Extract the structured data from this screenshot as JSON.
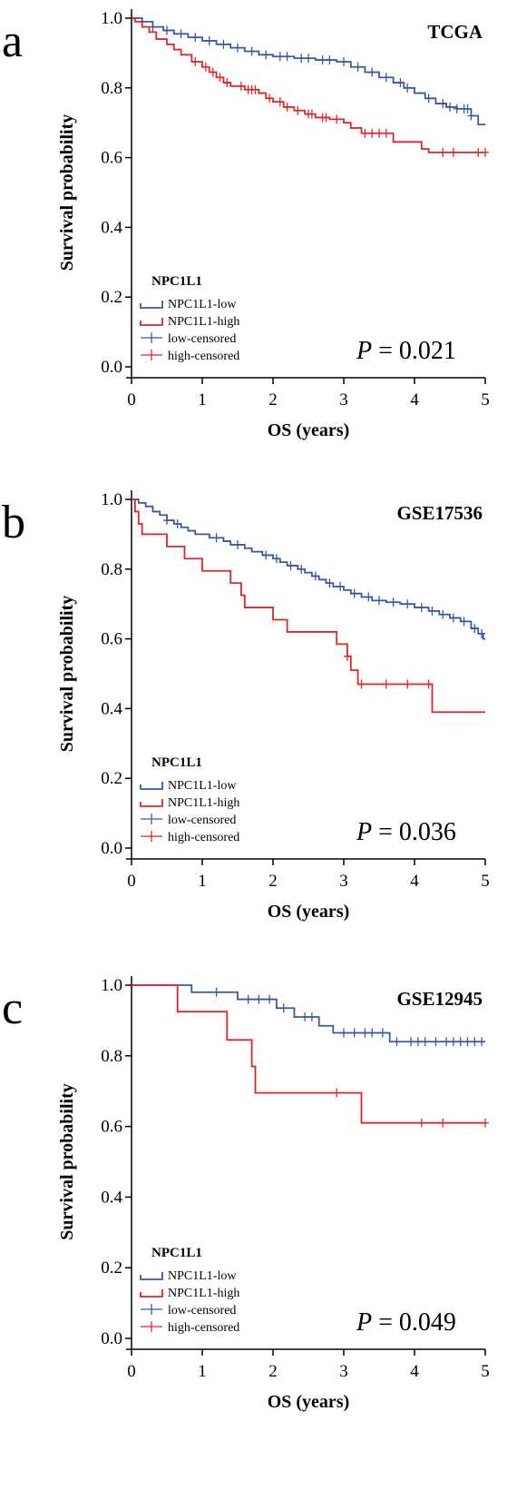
{
  "colors": {
    "low": "#3a57a7",
    "high": "#e0262a",
    "axis": "#000000"
  },
  "chart_data": [
    {
      "type": "line",
      "panel_label": "a",
      "title": "TCGA",
      "xlabel": "OS (years)",
      "ylabel": "Survival probability",
      "xlim": [
        0,
        5
      ],
      "ylim": [
        0,
        1
      ],
      "xticks": [
        "0",
        "1",
        "2",
        "3",
        "4",
        "5"
      ],
      "yticks": [
        "0.0",
        "0.2",
        "0.4",
        "0.6",
        "0.8",
        "1.0"
      ],
      "legend": {
        "title": "NPC1L1",
        "placement": "bottom-left",
        "entries": [
          "NPC1L1-low",
          "NPC1L1-high",
          "low-censored",
          "high-censored"
        ]
      },
      "p_value": {
        "label": "P",
        "value": "= 0.021"
      },
      "series": [
        {
          "name": "NPC1L1-low",
          "color_key": "low",
          "steps": [
            [
              0,
              1.0
            ],
            [
              0.15,
              0.99
            ],
            [
              0.3,
              0.975
            ],
            [
              0.45,
              0.965
            ],
            [
              0.6,
              0.955
            ],
            [
              0.8,
              0.945
            ],
            [
              1.0,
              0.935
            ],
            [
              1.2,
              0.925
            ],
            [
              1.4,
              0.915
            ],
            [
              1.6,
              0.905
            ],
            [
              1.8,
              0.895
            ],
            [
              2.0,
              0.89
            ],
            [
              2.3,
              0.885
            ],
            [
              2.6,
              0.88
            ],
            [
              2.9,
              0.875
            ],
            [
              3.1,
              0.86
            ],
            [
              3.3,
              0.845
            ],
            [
              3.5,
              0.83
            ],
            [
              3.7,
              0.815
            ],
            [
              3.85,
              0.8
            ],
            [
              4.0,
              0.785
            ],
            [
              4.15,
              0.77
            ],
            [
              4.3,
              0.755
            ],
            [
              4.45,
              0.745
            ],
            [
              4.6,
              0.74
            ],
            [
              4.8,
              0.72
            ],
            [
              4.9,
              0.695
            ]
          ],
          "end": 5.0,
          "censored": [
            0.3,
            0.5,
            0.7,
            0.9,
            1.1,
            1.3,
            1.5,
            1.7,
            1.9,
            2.1,
            2.2,
            2.4,
            2.5,
            2.7,
            2.8,
            3.0,
            3.2,
            3.4,
            3.6,
            3.8,
            3.9,
            4.2,
            4.4,
            4.5,
            4.6,
            4.7,
            4.75,
            4.8
          ]
        },
        {
          "name": "NPC1L1-high",
          "color_key": "high",
          "steps": [
            [
              0,
              1.0
            ],
            [
              0.05,
              0.99
            ],
            [
              0.15,
              0.975
            ],
            [
              0.25,
              0.96
            ],
            [
              0.35,
              0.94
            ],
            [
              0.5,
              0.925
            ],
            [
              0.6,
              0.91
            ],
            [
              0.7,
              0.895
            ],
            [
              0.85,
              0.875
            ],
            [
              1.0,
              0.86
            ],
            [
              1.1,
              0.845
            ],
            [
              1.2,
              0.83
            ],
            [
              1.3,
              0.815
            ],
            [
              1.4,
              0.805
            ],
            [
              1.6,
              0.795
            ],
            [
              1.8,
              0.785
            ],
            [
              1.9,
              0.77
            ],
            [
              2.0,
              0.76
            ],
            [
              2.15,
              0.745
            ],
            [
              2.3,
              0.735
            ],
            [
              2.45,
              0.725
            ],
            [
              2.6,
              0.715
            ],
            [
              2.8,
              0.71
            ],
            [
              3.0,
              0.7
            ],
            [
              3.1,
              0.685
            ],
            [
              3.25,
              0.67
            ],
            [
              3.7,
              0.645
            ],
            [
              4.1,
              0.625
            ],
            [
              4.2,
              0.615
            ]
          ],
          "end": 5.0,
          "censored": [
            0.9,
            1.05,
            1.15,
            1.25,
            1.35,
            1.55,
            1.65,
            1.7,
            1.75,
            1.95,
            2.1,
            2.2,
            2.35,
            2.5,
            2.55,
            2.7,
            2.75,
            2.9,
            3.3,
            3.4,
            3.5,
            3.6,
            4.4,
            4.55,
            4.9,
            5.0
          ]
        }
      ]
    },
    {
      "type": "line",
      "panel_label": "b",
      "title": "GSE17536",
      "xlabel": "OS (years)",
      "ylabel": "Survival probability",
      "xlim": [
        0,
        5
      ],
      "ylim": [
        0,
        1
      ],
      "xticks": [
        "0",
        "1",
        "2",
        "3",
        "4",
        "5"
      ],
      "yticks": [
        "0.0",
        "0.2",
        "0.4",
        "0.6",
        "0.8",
        "1.0"
      ],
      "legend": {
        "title": "NPC1L1",
        "placement": "bottom-left",
        "entries": [
          "NPC1L1-low",
          "NPC1L1-high",
          "low-censored",
          "high-censored"
        ]
      },
      "p_value": {
        "label": "P",
        "value": "= 0.036"
      },
      "series": [
        {
          "name": "NPC1L1-low",
          "color_key": "low",
          "steps": [
            [
              0,
              1.0
            ],
            [
              0.1,
              0.99
            ],
            [
              0.2,
              0.98
            ],
            [
              0.3,
              0.965
            ],
            [
              0.4,
              0.955
            ],
            [
              0.5,
              0.94
            ],
            [
              0.6,
              0.93
            ],
            [
              0.7,
              0.92
            ],
            [
              0.8,
              0.91
            ],
            [
              0.9,
              0.9
            ],
            [
              1.1,
              0.89
            ],
            [
              1.3,
              0.88
            ],
            [
              1.4,
              0.87
            ],
            [
              1.6,
              0.86
            ],
            [
              1.7,
              0.85
            ],
            [
              1.85,
              0.84
            ],
            [
              2.0,
              0.83
            ],
            [
              2.1,
              0.82
            ],
            [
              2.2,
              0.81
            ],
            [
              2.35,
              0.8
            ],
            [
              2.45,
              0.79
            ],
            [
              2.55,
              0.78
            ],
            [
              2.65,
              0.77
            ],
            [
              2.75,
              0.76
            ],
            [
              2.85,
              0.75
            ],
            [
              3.0,
              0.74
            ],
            [
              3.1,
              0.73
            ],
            [
              3.25,
              0.72
            ],
            [
              3.4,
              0.71
            ],
            [
              3.6,
              0.705
            ],
            [
              3.8,
              0.7
            ],
            [
              4.0,
              0.69
            ],
            [
              4.2,
              0.68
            ],
            [
              4.35,
              0.67
            ],
            [
              4.5,
              0.66
            ],
            [
              4.65,
              0.65
            ],
            [
              4.8,
              0.63
            ],
            [
              4.9,
              0.615
            ],
            [
              4.97,
              0.6
            ]
          ],
          "end": 5.0,
          "censored": [
            0.5,
            0.65,
            1.2,
            1.5,
            1.9,
            2.05,
            2.25,
            2.4,
            2.6,
            2.8,
            2.95,
            3.15,
            3.35,
            3.5,
            3.7,
            3.9,
            4.1,
            4.25,
            4.4,
            4.55,
            4.7,
            4.85,
            4.95
          ]
        },
        {
          "name": "NPC1L1-high",
          "color_key": "high",
          "steps": [
            [
              0,
              1.0
            ],
            [
              0.05,
              0.965
            ],
            [
              0.1,
              0.93
            ],
            [
              0.15,
              0.9
            ],
            [
              0.5,
              0.865
            ],
            [
              0.75,
              0.83
            ],
            [
              1.0,
              0.795
            ],
            [
              1.4,
              0.76
            ],
            [
              1.55,
              0.725
            ],
            [
              1.6,
              0.69
            ],
            [
              2.0,
              0.655
            ],
            [
              2.2,
              0.62
            ],
            [
              2.9,
              0.585
            ],
            [
              3.05,
              0.55
            ],
            [
              3.1,
              0.51
            ],
            [
              3.2,
              0.47
            ],
            [
              4.25,
              0.39
            ]
          ],
          "end": 5.0,
          "censored": [
            3.05,
            3.25,
            3.6,
            3.9,
            4.2
          ]
        }
      ]
    },
    {
      "type": "line",
      "panel_label": "c",
      "title": "GSE12945",
      "xlabel": "OS (years)",
      "ylabel": "Survival probability",
      "xlim": [
        0,
        5
      ],
      "ylim": [
        0,
        1
      ],
      "xticks": [
        "0",
        "1",
        "2",
        "3",
        "4",
        "5"
      ],
      "yticks": [
        "0.0",
        "0.2",
        "0.4",
        "0.6",
        "0.8",
        "1.0"
      ],
      "legend": {
        "title": "NPC1L1",
        "placement": "bottom-left",
        "entries": [
          "NPC1L1-low",
          "NPC1L1-high",
          "low-censored",
          "high-censored"
        ]
      },
      "p_value": {
        "label": "P",
        "value": "= 0.049"
      },
      "series": [
        {
          "name": "NPC1L1-low",
          "color_key": "low",
          "steps": [
            [
              0,
              1.0
            ],
            [
              0.85,
              0.98
            ],
            [
              1.5,
              0.96
            ],
            [
              2.05,
              0.935
            ],
            [
              2.3,
              0.91
            ],
            [
              2.65,
              0.885
            ],
            [
              2.85,
              0.865
            ],
            [
              3.65,
              0.84
            ]
          ],
          "end": 5.0,
          "censored": [
            1.2,
            1.65,
            1.8,
            1.95,
            2.15,
            2.45,
            2.55,
            3.0,
            3.15,
            3.3,
            3.4,
            3.55,
            3.75,
            3.95,
            4.05,
            4.15,
            4.3,
            4.45,
            4.55,
            4.65,
            4.75,
            4.85,
            4.95
          ]
        },
        {
          "name": "NPC1L1-high",
          "color_key": "high",
          "steps": [
            [
              0,
              1.0
            ],
            [
              0.65,
              0.925
            ],
            [
              1.35,
              0.845
            ],
            [
              1.7,
              0.77
            ],
            [
              1.75,
              0.695
            ],
            [
              3.25,
              0.61
            ]
          ],
          "end": 5.0,
          "censored": [
            2.9,
            4.1,
            4.4,
            5.0
          ]
        }
      ]
    }
  ]
}
